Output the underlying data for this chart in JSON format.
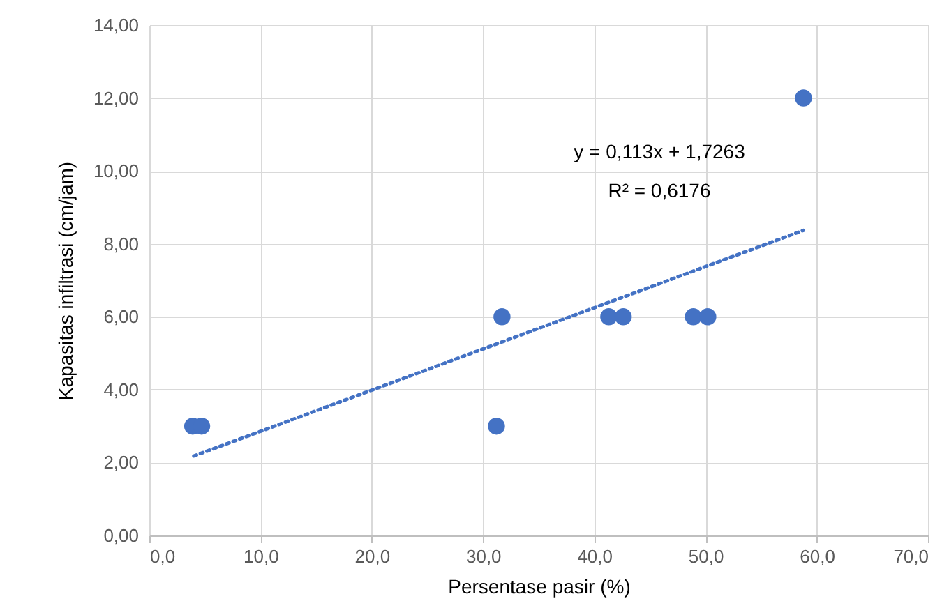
{
  "chart_data": {
    "type": "scatter",
    "xlabel": "Persentase pasir (%)",
    "ylabel": "Kapasitas infiltrasi (cm/jam)",
    "xlim": [
      0,
      70
    ],
    "ylim": [
      0,
      14
    ],
    "xticks": [
      {
        "value": 0,
        "label": "0,0"
      },
      {
        "value": 10,
        "label": "10,0"
      },
      {
        "value": 20,
        "label": "20,0"
      },
      {
        "value": 30,
        "label": "30,0"
      },
      {
        "value": 40,
        "label": "40,0"
      },
      {
        "value": 50,
        "label": "50,0"
      },
      {
        "value": 60,
        "label": "60,0"
      },
      {
        "value": 70,
        "label": "70,0"
      }
    ],
    "yticks": [
      {
        "value": 0,
        "label": "0,00"
      },
      {
        "value": 2,
        "label": "2,00"
      },
      {
        "value": 4,
        "label": "4,00"
      },
      {
        "value": 6,
        "label": "6,00"
      },
      {
        "value": 8,
        "label": "8,00"
      },
      {
        "value": 10,
        "label": "10,00"
      },
      {
        "value": 12,
        "label": "12,00"
      },
      {
        "value": 14,
        "label": "14,00"
      }
    ],
    "grid": true,
    "marker": "circle",
    "annotations": [
      "y = 0,113x + 1,7263",
      "R² = 0,6176"
    ],
    "series": [
      {
        "color": "#4472c4",
        "x": [
          3.9,
          4.7,
          31.2,
          31.7,
          41.3,
          42.6,
          48.9,
          50.2,
          58.8
        ],
        "values": [
          3.0,
          3.0,
          3.0,
          6.0,
          6.0,
          6.0,
          6.0,
          6.0,
          12.0
        ]
      },
      {
        "type": "line",
        "color": "#4472c4",
        "line_style": "dotted",
        "marker": "none",
        "x": [
          4.0,
          58.8
        ],
        "values": [
          2.18,
          8.37
        ]
      }
    ]
  }
}
